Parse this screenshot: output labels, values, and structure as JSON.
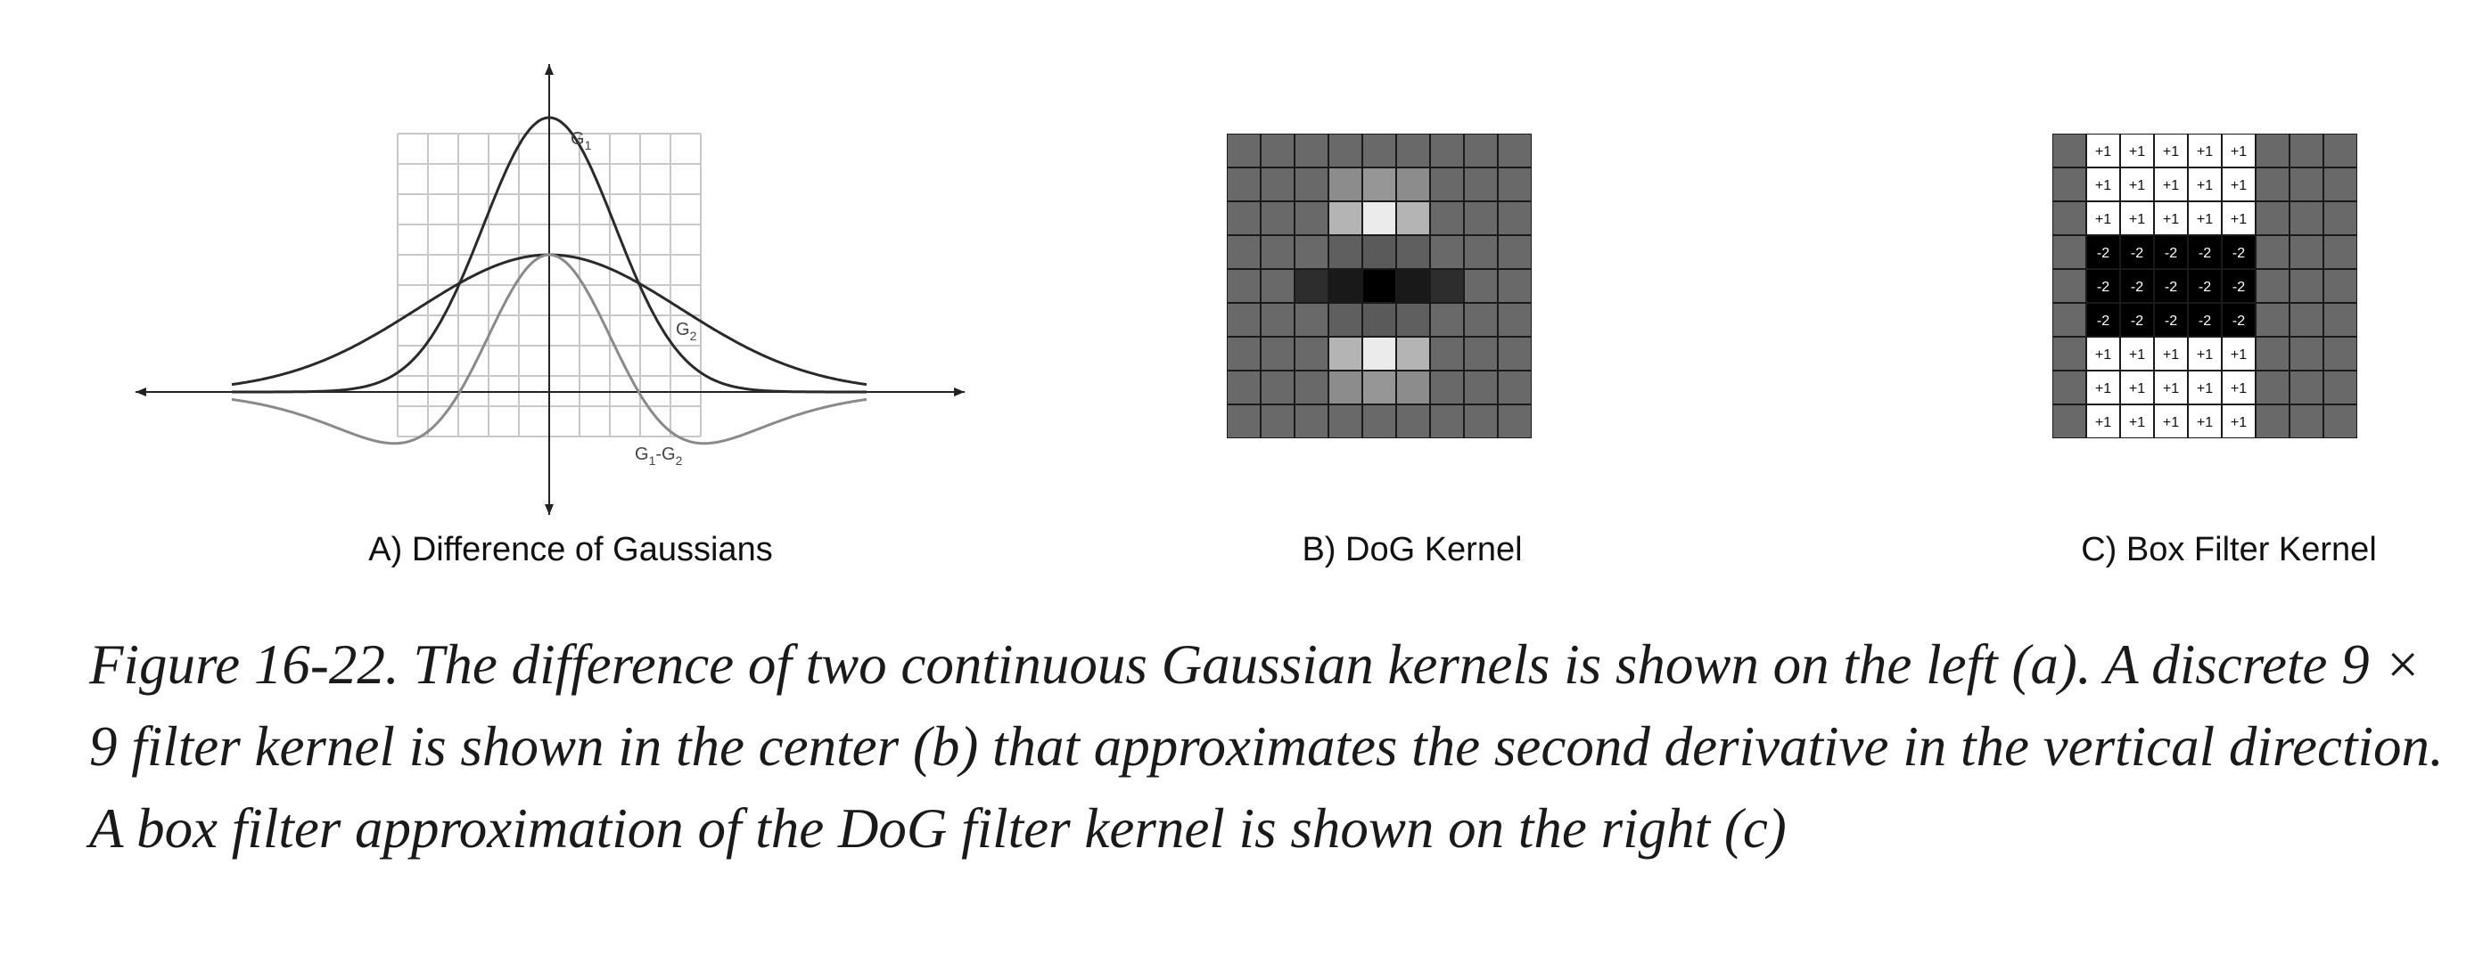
{
  "panels": {
    "a": {
      "label": "A) Difference of Gaussians",
      "curves": [
        {
          "name": "G1",
          "display_main": "G",
          "display_sub": "1",
          "sigma": 0.9,
          "amplitude": 1.0
        },
        {
          "name": "G2",
          "display_main": "G",
          "display_sub": "2",
          "sigma": 1.8,
          "amplitude": 0.5
        },
        {
          "name": "G1-G2",
          "display": [
            [
              "G",
              ""
            ],
            [
              "1",
              "sub"
            ],
            [
              "-",
              ""
            ],
            [
              "G",
              ""
            ],
            [
              "2",
              "sub"
            ]
          ]
        }
      ]
    },
    "b": {
      "label": "B) DoG Kernel",
      "size": 9,
      "gray_levels": [
        [
          105,
          105,
          105,
          105,
          105,
          105,
          105,
          105,
          105
        ],
        [
          105,
          105,
          105,
          140,
          150,
          140,
          105,
          105,
          105
        ],
        [
          105,
          105,
          105,
          180,
          235,
          180,
          105,
          105,
          105
        ],
        [
          105,
          105,
          105,
          95,
          90,
          95,
          105,
          105,
          105
        ],
        [
          105,
          105,
          45,
          25,
          0,
          25,
          45,
          105,
          105
        ],
        [
          105,
          105,
          105,
          95,
          90,
          95,
          105,
          105,
          105
        ],
        [
          105,
          105,
          105,
          180,
          235,
          180,
          105,
          105,
          105
        ],
        [
          105,
          105,
          105,
          140,
          150,
          140,
          105,
          105,
          105
        ],
        [
          105,
          105,
          105,
          105,
          105,
          105,
          105,
          105,
          105
        ]
      ]
    },
    "c": {
      "label": "C) Box Filter Kernel",
      "size": 9,
      "values": [
        [
          0,
          1,
          1,
          1,
          1,
          1,
          0,
          0,
          0
        ],
        [
          0,
          1,
          1,
          1,
          1,
          1,
          0,
          0,
          0
        ],
        [
          0,
          1,
          1,
          1,
          1,
          1,
          0,
          0,
          0
        ],
        [
          0,
          -2,
          -2,
          -2,
          -2,
          -2,
          0,
          0,
          0
        ],
        [
          0,
          -2,
          -2,
          -2,
          -2,
          -2,
          0,
          0,
          0
        ],
        [
          0,
          -2,
          -2,
          -2,
          -2,
          -2,
          0,
          0,
          0
        ],
        [
          0,
          1,
          1,
          1,
          1,
          1,
          0,
          0,
          0
        ],
        [
          0,
          1,
          1,
          1,
          1,
          1,
          0,
          0,
          0
        ],
        [
          0,
          1,
          1,
          1,
          1,
          1,
          0,
          0,
          0
        ]
      ],
      "cell_text": {
        "1": "+1",
        "-2": "-2",
        "0": ""
      }
    }
  },
  "caption": "Figure 16-22. The difference of two continuous Gaussian kernels is shown on the left (a). A discrete 9 × 9 filter kernel is shown in the center (b) that approximates the second derivative in the vertical direction. A box filter approximation of the DoG filter kernel is shown on the right (c)"
}
